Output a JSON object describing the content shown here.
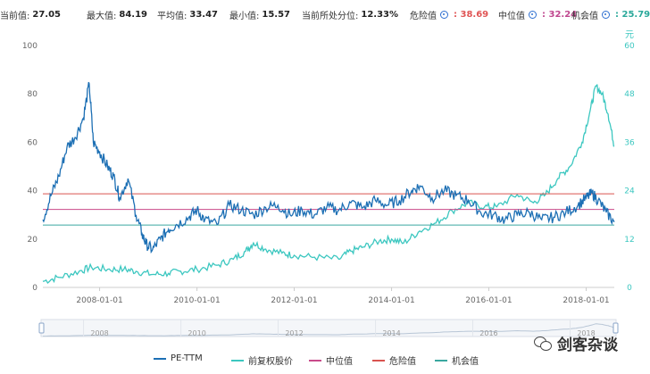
{
  "stats": {
    "current_label": "当前值:",
    "current_value": "27.05",
    "max_label": "最大值:",
    "max_value": "84.19",
    "avg_label": "平均值:",
    "avg_value": "33.47",
    "min_label": "最小值:",
    "min_value": "15.57",
    "percentile_label": "当前所处分位:",
    "percentile_value": "12.33%",
    "danger_label": "危险值",
    "danger_value": ": 38.69",
    "median_label": "中位值",
    "median_value": ": 32.24",
    "opportunity_label": "机会值",
    "opportunity_value": ": 25.79"
  },
  "colors": {
    "pe": "#1c6fb4",
    "price": "#3cc7c0",
    "median": "#c94a8a",
    "danger": "#d9534f",
    "opportunity": "#3aa8a0",
    "danger_text": "#e05555",
    "median_text": "#c0478f",
    "opportunity_text": "#2aa89a"
  },
  "legend": {
    "pe": "PE-TTM",
    "price": "前复权股价",
    "median": "中位值",
    "danger": "危险值",
    "opportunity": "机会值"
  },
  "watermark": "剑客杂谈",
  "chart_data": {
    "type": "line",
    "x_range": [
      "2006-11-01",
      "2018-07-31"
    ],
    "left_axis": {
      "ticks": [
        0,
        20,
        40,
        60,
        80,
        100
      ],
      "range": [
        0,
        100
      ]
    },
    "right_axis": {
      "unit": "元",
      "ticks": [
        0,
        12,
        24,
        36,
        48,
        60
      ],
      "range": [
        0,
        60
      ]
    },
    "x_ticks": [
      "2008-01-01",
      "2010-01-01",
      "2012-01-01",
      "2014-01-01",
      "2016-01-01",
      "2018-01-01"
    ],
    "navigator_labels": [
      "2008",
      "2010",
      "2012",
      "2014",
      "2016",
      "2018"
    ],
    "reference_lines": {
      "danger": 38.69,
      "median": 32.24,
      "opportunity": 25.79
    },
    "series": [
      {
        "name": "PE-TTM",
        "axis": "left",
        "points": [
          [
            "2006-11-01",
            28
          ],
          [
            "2007-01-01",
            38
          ],
          [
            "2007-03-01",
            46
          ],
          [
            "2007-05-01",
            58
          ],
          [
            "2007-07-01",
            62
          ],
          [
            "2007-09-01",
            70
          ],
          [
            "2007-10-15",
            84.19
          ],
          [
            "2007-11-15",
            60
          ],
          [
            "2008-01-01",
            56
          ],
          [
            "2008-03-01",
            50
          ],
          [
            "2008-04-15",
            46
          ],
          [
            "2008-06-01",
            37
          ],
          [
            "2008-08-01",
            45
          ],
          [
            "2008-10-01",
            30
          ],
          [
            "2008-11-15",
            22
          ],
          [
            "2008-12-15",
            18
          ],
          [
            "2009-02-01",
            15.57
          ],
          [
            "2009-04-01",
            20
          ],
          [
            "2009-06-01",
            24
          ],
          [
            "2009-08-01",
            26
          ],
          [
            "2009-11-01",
            29
          ],
          [
            "2010-01-01",
            32
          ],
          [
            "2010-03-01",
            28
          ],
          [
            "2010-06-01",
            26
          ],
          [
            "2010-09-01",
            34
          ],
          [
            "2010-12-01",
            32
          ],
          [
            "2011-03-01",
            30
          ],
          [
            "2011-06-01",
            33
          ],
          [
            "2011-09-01",
            34
          ],
          [
            "2011-12-01",
            30
          ],
          [
            "2012-03-01",
            32
          ],
          [
            "2012-06-01",
            30
          ],
          [
            "2012-09-01",
            33
          ],
          [
            "2012-12-01",
            32
          ],
          [
            "2013-03-01",
            35
          ],
          [
            "2013-06-01",
            33
          ],
          [
            "2013-09-01",
            36
          ],
          [
            "2013-12-01",
            34
          ],
          [
            "2014-03-01",
            36
          ],
          [
            "2014-06-01",
            40
          ],
          [
            "2014-08-01",
            42
          ],
          [
            "2014-11-01",
            37
          ],
          [
            "2015-02-01",
            40
          ],
          [
            "2015-05-01",
            38
          ],
          [
            "2015-08-01",
            36
          ],
          [
            "2015-11-01",
            31
          ],
          [
            "2016-02-01",
            30
          ],
          [
            "2016-05-01",
            28
          ],
          [
            "2016-08-01",
            30
          ],
          [
            "2016-11-01",
            31
          ],
          [
            "2017-02-01",
            28
          ],
          [
            "2017-05-01",
            29
          ],
          [
            "2017-08-01",
            31
          ],
          [
            "2017-11-01",
            34
          ],
          [
            "2018-01-01",
            37
          ],
          [
            "2018-02-15",
            39
          ],
          [
            "2018-04-01",
            36
          ],
          [
            "2018-06-01",
            31
          ],
          [
            "2018-07-31",
            27.05
          ]
        ]
      },
      {
        "name": "前复权股价",
        "axis": "right",
        "points": [
          [
            "2006-11-01",
            1.5
          ],
          [
            "2007-03-01",
            2.5
          ],
          [
            "2007-08-01",
            4
          ],
          [
            "2007-11-01",
            5
          ],
          [
            "2008-03-01",
            4.5
          ],
          [
            "2008-07-01",
            4.5
          ],
          [
            "2008-10-01",
            4
          ],
          [
            "2009-02-01",
            3.2
          ],
          [
            "2009-06-01",
            3.5
          ],
          [
            "2009-09-01",
            4
          ],
          [
            "2010-01-01",
            4.5
          ],
          [
            "2010-06-01",
            5.5
          ],
          [
            "2010-10-01",
            7
          ],
          [
            "2011-01-01",
            9
          ],
          [
            "2011-03-01",
            11
          ],
          [
            "2011-06-01",
            9.5
          ],
          [
            "2011-10-01",
            8.5
          ],
          [
            "2012-01-01",
            8
          ],
          [
            "2012-06-01",
            7.5
          ],
          [
            "2012-12-01",
            7
          ],
          [
            "2013-03-01",
            9
          ],
          [
            "2013-06-01",
            10
          ],
          [
            "2013-10-01",
            11.5
          ],
          [
            "2014-01-01",
            12
          ],
          [
            "2014-04-01",
            11
          ],
          [
            "2014-08-01",
            14
          ],
          [
            "2014-12-01",
            16
          ],
          [
            "2015-04-01",
            19
          ],
          [
            "2015-08-01",
            21
          ],
          [
            "2015-12-01",
            20
          ],
          [
            "2016-03-01",
            20
          ],
          [
            "2016-08-01",
            23
          ],
          [
            "2016-12-01",
            21
          ],
          [
            "2017-03-01",
            23
          ],
          [
            "2017-06-01",
            27
          ],
          [
            "2017-09-01",
            30
          ],
          [
            "2017-12-01",
            36
          ],
          [
            "2018-02-01",
            44
          ],
          [
            "2018-03-15",
            50
          ],
          [
            "2018-05-01",
            48
          ],
          [
            "2018-06-15",
            43
          ],
          [
            "2018-07-31",
            35
          ]
        ]
      }
    ]
  }
}
